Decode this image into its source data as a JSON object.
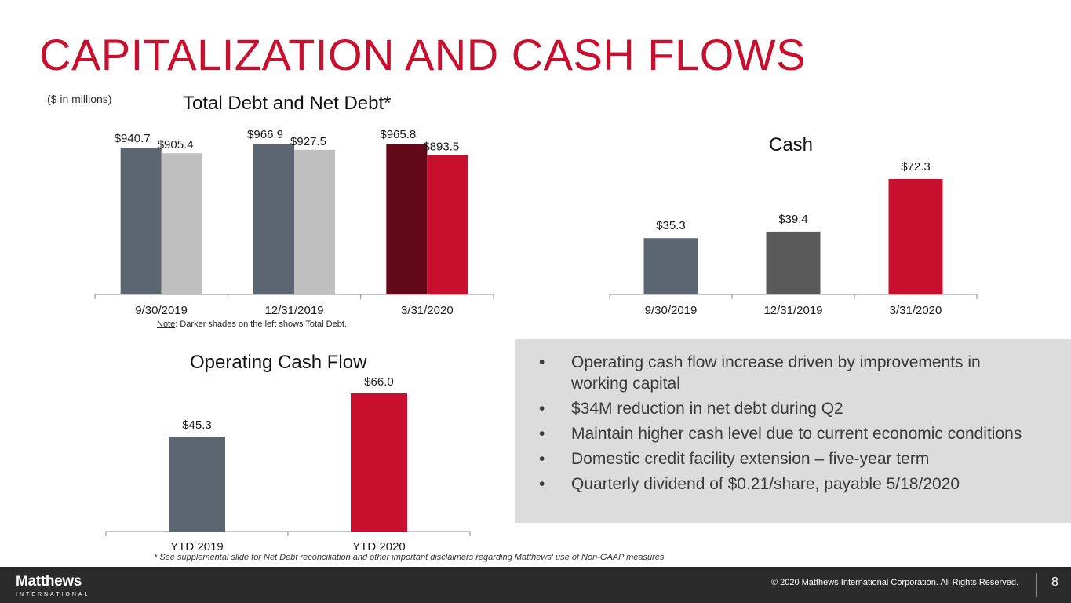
{
  "slide": {
    "title": "CAPITALIZATION AND CASH FLOWS",
    "units_note": "($ in millions)",
    "debt_note_prefix": "Note",
    "debt_note_text": ": Darker shades on the left shows Total Debt.",
    "footnote": "* See supplemental slide for Net Debt reconciliation and other important disclaimers regarding Matthews' use of Non-GAAP measures",
    "bullets": [
      "Operating cash flow increase driven by improvements in working capital",
      "$34M reduction in net debt during Q2",
      "Maintain higher cash level due to current economic conditions",
      "Domestic credit facility extension – five-year term",
      "Quarterly dividend of $0.21/share, payable 5/18/2020"
    ],
    "bullet_symbol": "•",
    "footer": {
      "logo_main": "Matthews",
      "logo_sub": "INTERNATIONAL",
      "copyright": "© 2020 Matthews International Corporation. All Rights Reserved.",
      "page_number": "8"
    }
  },
  "chart_data": [
    {
      "id": "debt",
      "type": "bar",
      "title": "Total Debt and Net Debt*",
      "categories": [
        "9/30/2019",
        "12/31/2019",
        "3/31/2020"
      ],
      "series": [
        {
          "name": "",
          "values": [
            940.7,
            966.9,
            965.8
          ],
          "labels": [
            "$940.7",
            "$966.9",
            "$965.8"
          ],
          "colors": [
            "#5b6670",
            "#5b6670",
            "#64091a"
          ]
        },
        {
          "name": "",
          "values": [
            905.4,
            927.5,
            893.5
          ],
          "labels": [
            "$905.4",
            "$927.5",
            "$893.5"
          ],
          "colors": [
            "#bfbfbf",
            "#bfbfbf",
            "#c8102e"
          ]
        }
      ],
      "ylim": [
        0,
        966.9
      ]
    },
    {
      "id": "cash",
      "type": "bar",
      "title": "Cash",
      "categories": [
        "9/30/2019",
        "12/31/2019",
        "3/31/2020"
      ],
      "values": [
        35.3,
        39.4,
        72.3
      ],
      "labels": [
        "$35.3",
        "$39.4",
        "$72.3"
      ],
      "colors": [
        "#5b6670",
        "#595959",
        "#c8102e"
      ],
      "ylim": [
        0,
        72.3
      ]
    },
    {
      "id": "ocf",
      "type": "bar",
      "title": "Operating Cash Flow",
      "categories": [
        "YTD 2019",
        "YTD 2020"
      ],
      "values": [
        45.3,
        66.0
      ],
      "labels": [
        "$45.3",
        "$66.0"
      ],
      "colors": [
        "#5b6670",
        "#c8102e"
      ],
      "ylim": [
        0,
        66.0
      ]
    }
  ]
}
